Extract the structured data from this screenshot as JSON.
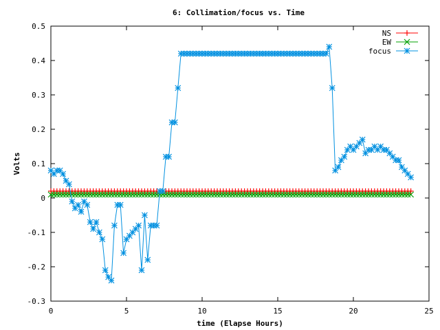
{
  "chart_data": {
    "type": "line",
    "title": "6: Collimation/focus vs. Time",
    "xlabel": "time (Elapse Hours)",
    "ylabel": "Volts",
    "xlim": [
      0,
      25
    ],
    "ylim": [
      -0.3,
      0.5
    ],
    "xticks": [
      "0",
      "5",
      "10",
      "15",
      "20",
      "25"
    ],
    "yticks": [
      "-0.3",
      "-0.2",
      "-0.1",
      "0",
      "0.1",
      "0.2",
      "0.3",
      "0.4",
      "0.5"
    ],
    "grid": false,
    "legend_position": "top-right",
    "series": [
      {
        "name": "NS",
        "color": "#ff0000",
        "marker": "plus",
        "x": [
          0.0,
          0.2,
          0.4,
          0.6,
          0.8,
          1.0,
          1.2,
          1.4,
          1.6,
          1.8,
          2.0,
          2.2,
          2.4,
          2.6,
          2.8,
          3.0,
          3.2,
          3.4,
          3.6,
          3.8,
          4.0,
          4.2,
          4.4,
          4.6,
          4.8,
          5.0,
          5.2,
          5.4,
          5.6,
          5.8,
          6.0,
          6.2,
          6.4,
          6.6,
          6.8,
          7.0,
          7.2,
          7.4,
          7.6,
          7.8,
          8.0,
          8.2,
          8.4,
          8.6,
          8.8,
          9.0,
          9.2,
          9.4,
          9.6,
          9.8,
          10.0,
          10.2,
          10.4,
          10.6,
          10.8,
          11.0,
          11.2,
          11.4,
          11.6,
          11.8,
          12.0,
          12.2,
          12.4,
          12.6,
          12.8,
          13.0,
          13.2,
          13.4,
          13.6,
          13.8,
          14.0,
          14.2,
          14.4,
          14.6,
          14.8,
          15.0,
          15.2,
          15.4,
          15.6,
          15.8,
          16.0,
          16.2,
          16.4,
          16.6,
          16.8,
          17.0,
          17.2,
          17.4,
          17.6,
          17.8,
          18.0,
          18.2,
          18.4,
          18.6,
          18.8,
          19.0,
          19.2,
          19.4,
          19.6,
          19.8,
          20.0,
          20.2,
          20.4,
          20.6,
          20.8,
          21.0,
          21.2,
          21.4,
          21.6,
          21.8,
          22.0,
          22.2,
          22.4,
          22.6,
          22.8,
          23.0,
          23.2,
          23.4,
          23.6,
          23.8
        ],
        "y": [
          0.02,
          0.02,
          0.02,
          0.02,
          0.02,
          0.02,
          0.02,
          0.02,
          0.02,
          0.02,
          0.02,
          0.02,
          0.02,
          0.02,
          0.02,
          0.02,
          0.02,
          0.02,
          0.02,
          0.02,
          0.02,
          0.02,
          0.02,
          0.02,
          0.02,
          0.02,
          0.02,
          0.02,
          0.02,
          0.02,
          0.02,
          0.02,
          0.02,
          0.02,
          0.02,
          0.02,
          0.02,
          0.02,
          0.02,
          0.02,
          0.02,
          0.02,
          0.02,
          0.02,
          0.02,
          0.02,
          0.02,
          0.02,
          0.02,
          0.02,
          0.02,
          0.02,
          0.02,
          0.02,
          0.02,
          0.02,
          0.02,
          0.02,
          0.02,
          0.02,
          0.02,
          0.02,
          0.02,
          0.02,
          0.02,
          0.02,
          0.02,
          0.02,
          0.02,
          0.02,
          0.02,
          0.02,
          0.02,
          0.02,
          0.02,
          0.02,
          0.02,
          0.02,
          0.02,
          0.02,
          0.02,
          0.02,
          0.02,
          0.02,
          0.02,
          0.02,
          0.02,
          0.02,
          0.02,
          0.02,
          0.02,
          0.02,
          0.02,
          0.02,
          0.02,
          0.02,
          0.02,
          0.02,
          0.02,
          0.02,
          0.02,
          0.02,
          0.02,
          0.02,
          0.02,
          0.02,
          0.02,
          0.02,
          0.02,
          0.02,
          0.02,
          0.02,
          0.02,
          0.02,
          0.02,
          0.02,
          0.02,
          0.02,
          0.02,
          0.02
        ]
      },
      {
        "name": "EW",
        "color": "#00a000",
        "marker": "cross",
        "x": [
          0.0,
          0.2,
          0.4,
          0.6,
          0.8,
          1.0,
          1.2,
          1.4,
          1.6,
          1.8,
          2.0,
          2.2,
          2.4,
          2.6,
          2.8,
          3.0,
          3.2,
          3.4,
          3.6,
          3.8,
          4.0,
          4.2,
          4.4,
          4.6,
          4.8,
          5.0,
          5.2,
          5.4,
          5.6,
          5.8,
          6.0,
          6.2,
          6.4,
          6.6,
          6.8,
          7.0,
          7.2,
          7.4,
          7.6,
          7.8,
          8.0,
          8.2,
          8.4,
          8.6,
          8.8,
          9.0,
          9.2,
          9.4,
          9.6,
          9.8,
          10.0,
          10.2,
          10.4,
          10.6,
          10.8,
          11.0,
          11.2,
          11.4,
          11.6,
          11.8,
          12.0,
          12.2,
          12.4,
          12.6,
          12.8,
          13.0,
          13.2,
          13.4,
          13.6,
          13.8,
          14.0,
          14.2,
          14.4,
          14.6,
          14.8,
          15.0,
          15.2,
          15.4,
          15.6,
          15.8,
          16.0,
          16.2,
          16.4,
          16.6,
          16.8,
          17.0,
          17.2,
          17.4,
          17.6,
          17.8,
          18.0,
          18.2,
          18.4,
          18.6,
          18.8,
          19.0,
          19.2,
          19.4,
          19.6,
          19.8,
          20.0,
          20.2,
          20.4,
          20.6,
          20.8,
          21.0,
          21.2,
          21.4,
          21.6,
          21.8,
          22.0,
          22.2,
          22.4,
          22.6,
          22.8,
          23.0,
          23.2,
          23.4,
          23.6,
          23.8
        ],
        "y": [
          0.01,
          0.01,
          0.01,
          0.01,
          0.01,
          0.01,
          0.01,
          0.01,
          0.01,
          0.01,
          0.01,
          0.01,
          0.01,
          0.01,
          0.01,
          0.01,
          0.01,
          0.01,
          0.01,
          0.01,
          0.01,
          0.01,
          0.01,
          0.01,
          0.01,
          0.01,
          0.01,
          0.01,
          0.01,
          0.01,
          0.01,
          0.01,
          0.01,
          0.01,
          0.01,
          0.01,
          0.01,
          0.01,
          0.01,
          0.01,
          0.01,
          0.01,
          0.01,
          0.01,
          0.01,
          0.01,
          0.01,
          0.01,
          0.01,
          0.01,
          0.01,
          0.01,
          0.01,
          0.01,
          0.01,
          0.01,
          0.01,
          0.01,
          0.01,
          0.01,
          0.01,
          0.01,
          0.01,
          0.01,
          0.01,
          0.01,
          0.01,
          0.01,
          0.01,
          0.01,
          0.01,
          0.01,
          0.01,
          0.01,
          0.01,
          0.01,
          0.01,
          0.01,
          0.01,
          0.01,
          0.01,
          0.01,
          0.01,
          0.01,
          0.01,
          0.01,
          0.01,
          0.01,
          0.01,
          0.01,
          0.01,
          0.01,
          0.01,
          0.01,
          0.01,
          0.01,
          0.01,
          0.01,
          0.01,
          0.01,
          0.01,
          0.01,
          0.01,
          0.01,
          0.01,
          0.01,
          0.01,
          0.01,
          0.01,
          0.01,
          0.01,
          0.01,
          0.01,
          0.01,
          0.01,
          0.01,
          0.01,
          0.01,
          0.01,
          0.01
        ]
      },
      {
        "name": "focus",
        "color": "#0090e0",
        "marker": "star",
        "x": [
          0.0,
          0.2,
          0.4,
          0.6,
          0.8,
          1.0,
          1.2,
          1.4,
          1.6,
          1.8,
          2.0,
          2.2,
          2.4,
          2.6,
          2.8,
          3.0,
          3.2,
          3.4,
          3.6,
          3.8,
          4.0,
          4.2,
          4.4,
          4.6,
          4.8,
          5.0,
          5.2,
          5.4,
          5.6,
          5.8,
          6.0,
          6.2,
          6.4,
          6.6,
          6.8,
          7.0,
          7.2,
          7.4,
          7.6,
          7.8,
          8.0,
          8.2,
          8.4,
          8.6,
          8.8,
          9.0,
          9.2,
          9.4,
          9.6,
          9.8,
          10.0,
          10.2,
          10.4,
          10.6,
          10.8,
          11.0,
          11.2,
          11.4,
          11.6,
          11.8,
          12.0,
          12.2,
          12.4,
          12.6,
          12.8,
          13.0,
          13.2,
          13.4,
          13.6,
          13.8,
          14.0,
          14.2,
          14.4,
          14.6,
          14.8,
          15.0,
          15.2,
          15.4,
          15.6,
          15.8,
          16.0,
          16.2,
          16.4,
          16.6,
          16.8,
          17.0,
          17.2,
          17.4,
          17.6,
          17.8,
          18.0,
          18.2,
          18.4,
          18.6,
          18.8,
          19.0,
          19.2,
          19.4,
          19.6,
          19.8,
          20.0,
          20.2,
          20.4,
          20.6,
          20.8,
          21.0,
          21.2,
          21.4,
          21.6,
          21.8,
          22.0,
          22.2,
          22.4,
          22.6,
          22.8,
          23.0,
          23.2,
          23.4,
          23.6,
          23.8
        ],
        "y": [
          0.08,
          0.07,
          0.08,
          0.08,
          0.07,
          0.05,
          0.04,
          -0.01,
          -0.03,
          -0.02,
          -0.04,
          -0.01,
          -0.02,
          -0.07,
          -0.09,
          -0.07,
          -0.1,
          -0.12,
          -0.21,
          -0.23,
          -0.24,
          -0.08,
          -0.02,
          -0.02,
          -0.16,
          -0.12,
          -0.11,
          -0.1,
          -0.09,
          -0.08,
          -0.21,
          -0.05,
          -0.18,
          -0.08,
          -0.08,
          -0.08,
          0.02,
          0.02,
          0.12,
          0.12,
          0.22,
          0.22,
          0.32,
          0.42,
          0.42,
          0.42,
          0.42,
          0.42,
          0.42,
          0.42,
          0.42,
          0.42,
          0.42,
          0.42,
          0.42,
          0.42,
          0.42,
          0.42,
          0.42,
          0.42,
          0.42,
          0.42,
          0.42,
          0.42,
          0.42,
          0.42,
          0.42,
          0.42,
          0.42,
          0.42,
          0.42,
          0.42,
          0.42,
          0.42,
          0.42,
          0.42,
          0.42,
          0.42,
          0.42,
          0.42,
          0.42,
          0.42,
          0.42,
          0.42,
          0.42,
          0.42,
          0.42,
          0.42,
          0.42,
          0.42,
          0.42,
          0.42,
          0.44,
          0.32,
          0.08,
          0.09,
          0.11,
          0.12,
          0.14,
          0.15,
          0.14,
          0.15,
          0.16,
          0.17,
          0.13,
          0.14,
          0.14,
          0.15,
          0.14,
          0.15,
          0.14,
          0.14,
          0.13,
          0.12,
          0.11,
          0.11,
          0.09,
          0.08,
          0.07,
          0.06
        ]
      }
    ]
  }
}
